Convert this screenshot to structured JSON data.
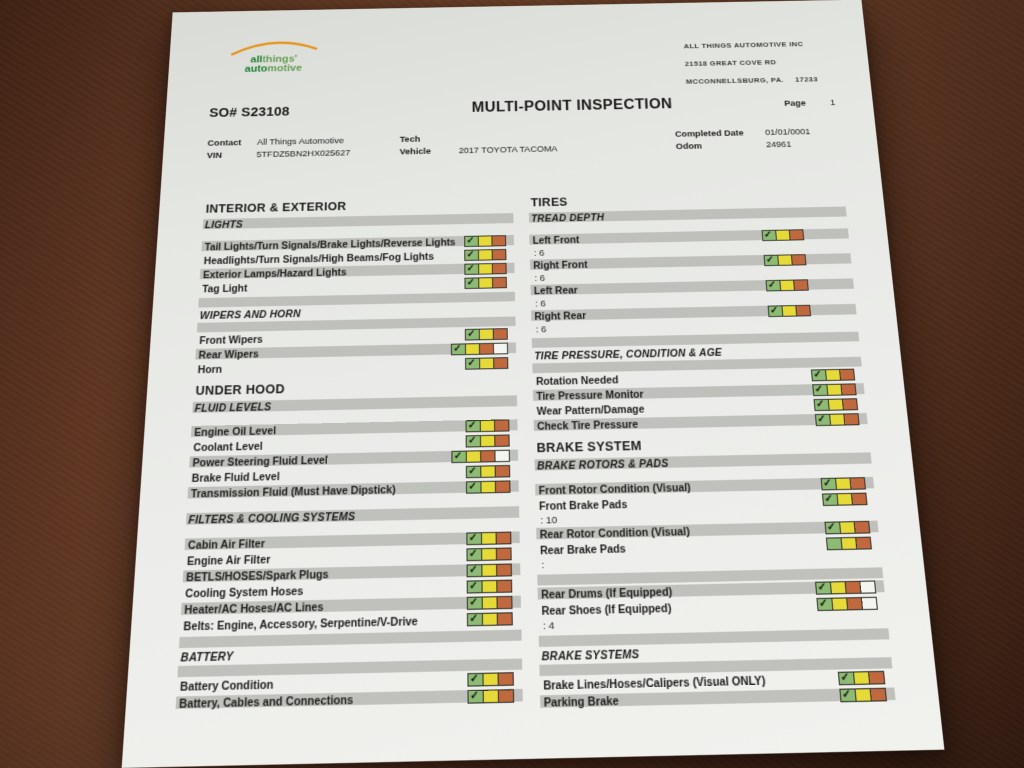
{
  "logo": {
    "line1_bold": "all",
    "line1_rest": "things'",
    "line2_bold": "auto",
    "line2_rest": "motive"
  },
  "company": {
    "name": "ALL THINGS AUTOMOTIVE INC",
    "address_line": "21518 GREAT COVE RD",
    "city_line": "MCCONNELLSBURG, PA.",
    "zip": "17233"
  },
  "header": {
    "so_number": "SO# S23108",
    "title": "MULTI-POINT INSPECTION",
    "page_label": "Page",
    "page_number": "1"
  },
  "info": {
    "contact_label": "Contact",
    "contact": "All Things Automotive",
    "vin_label": "VIN",
    "vin": "5TFDZ5BN2HX025627",
    "tech_label": "Tech",
    "tech": "",
    "vehicle_label": "Vehicle",
    "vehicle": "2017 TOYOTA TACOMA",
    "completed_label": "Completed Date",
    "completed_date": "01/01/0001",
    "odom_label": "Odom",
    "odom": "24961"
  },
  "colors": {
    "check_green": "#8dbb73",
    "check_yellow": "#e6da38",
    "check_orange": "#c0693e",
    "bar_gray": "#b7b8b4",
    "logo_dark_green": "#1e7c30",
    "logo_light_green": "#669e54",
    "logo_orange": "#e8921a"
  },
  "columns": {
    "left": [
      {
        "t": "h1",
        "label": "INTERIOR & EXTERIOR"
      },
      {
        "t": "h2",
        "label": "LIGHTS",
        "shaded": true
      },
      {
        "t": "gap"
      },
      {
        "t": "item",
        "label": "Tail Lights/Turn Signals/Brake Lights/Reverse Lights",
        "shaded": true,
        "check": true
      },
      {
        "t": "item",
        "label": "Headlights/Turn Signals/High Beams/Fog Lights",
        "shaded": false,
        "check": true
      },
      {
        "t": "item",
        "label": "Exterior Lamps/Hazard Lights",
        "shaded": true,
        "check": true
      },
      {
        "t": "item",
        "label": "Tag Light",
        "shaded": false,
        "check": true
      },
      {
        "t": "bar"
      },
      {
        "t": "h2",
        "label": "WIPERS AND HORN",
        "shaded": false
      },
      {
        "t": "bar"
      },
      {
        "t": "item",
        "label": "Front Wipers",
        "shaded": false,
        "check": true
      },
      {
        "t": "item",
        "label": "Rear Wipers",
        "shaded": true,
        "check": true,
        "white": true
      },
      {
        "t": "item",
        "label": "Horn",
        "shaded": false,
        "check": true
      },
      {
        "t": "h1",
        "label": "UNDER HOOD"
      },
      {
        "t": "h2",
        "label": "FLUID LEVELS",
        "shaded": true
      },
      {
        "t": "gap"
      },
      {
        "t": "item",
        "label": "Engine Oil Level",
        "shaded": true,
        "check": true
      },
      {
        "t": "item",
        "label": "Coolant Level",
        "shaded": false,
        "check": true
      },
      {
        "t": "item",
        "label": "Power Steering Fluid Level",
        "shaded": true,
        "check": true,
        "white": true
      },
      {
        "t": "item",
        "label": "Brake Fluid Level",
        "shaded": false,
        "check": true
      },
      {
        "t": "item",
        "label": "Transmission Fluid (Must Have Dipstick)",
        "shaded": true,
        "check": true
      },
      {
        "t": "gap"
      },
      {
        "t": "h2",
        "label": "FILTERS & COOLING SYSTEMS",
        "shaded": true
      },
      {
        "t": "gap"
      },
      {
        "t": "item",
        "label": "Cabin Air Filter",
        "shaded": true,
        "check": true
      },
      {
        "t": "item",
        "label": "Engine Air Filter",
        "shaded": false,
        "check": true
      },
      {
        "t": "item",
        "label": "BETLS/HOSES/Spark Plugs",
        "shaded": true,
        "check": true
      },
      {
        "t": "item",
        "label": "Cooling System Hoses",
        "shaded": false,
        "check": true
      },
      {
        "t": "item",
        "label": "Heater/AC Hoses/AC Lines",
        "shaded": true,
        "check": true
      },
      {
        "t": "item",
        "label": "Belts: Engine, Accessory, Serpentine/V-Drive",
        "shaded": false,
        "check": true
      },
      {
        "t": "bar"
      },
      {
        "t": "h2",
        "label": "BATTERY",
        "shaded": false
      },
      {
        "t": "bar"
      },
      {
        "t": "item",
        "label": "Battery Condition",
        "shaded": false,
        "check": true
      },
      {
        "t": "item",
        "label": "Battery, Cables and Connections",
        "shaded": true,
        "check": true
      }
    ],
    "right": [
      {
        "t": "h1",
        "label": "TIRES"
      },
      {
        "t": "h2",
        "label": "TREAD DEPTH",
        "shaded": true
      },
      {
        "t": "gap"
      },
      {
        "t": "item",
        "label": "Left Front",
        "shaded": true,
        "check": true,
        "inset": true
      },
      {
        "t": "value",
        "label": ": 6"
      },
      {
        "t": "item",
        "label": "Right Front",
        "shaded": true,
        "check": true,
        "inset": true
      },
      {
        "t": "value",
        "label": ": 6"
      },
      {
        "t": "item",
        "label": "Left Rear",
        "shaded": true,
        "check": true,
        "inset": true
      },
      {
        "t": "value",
        "label": ": 6"
      },
      {
        "t": "item",
        "label": "Right Rear",
        "shaded": true,
        "check": true,
        "inset": true
      },
      {
        "t": "value",
        "label": ": 6"
      },
      {
        "t": "bar"
      },
      {
        "t": "h2",
        "label": "TIRE PRESSURE, CONDITION & AGE",
        "shaded": false
      },
      {
        "t": "bar"
      },
      {
        "t": "item",
        "label": "Rotation Needed",
        "shaded": false,
        "check": true
      },
      {
        "t": "item",
        "label": "Tire Pressure Monitor",
        "shaded": true,
        "check": true
      },
      {
        "t": "item",
        "label": "Wear Pattern/Damage",
        "shaded": false,
        "check": true
      },
      {
        "t": "item",
        "label": "Check Tire Pressure",
        "shaded": true,
        "check": true
      },
      {
        "t": "h1",
        "label": "BRAKE SYSTEM"
      },
      {
        "t": "h2",
        "label": "BRAKE ROTORS & PADS",
        "shaded": true
      },
      {
        "t": "gap"
      },
      {
        "t": "item",
        "label": "Front Rotor Condition (Visual)",
        "shaded": true,
        "check": true
      },
      {
        "t": "item",
        "label": "Front Brake Pads",
        "shaded": false,
        "check": true
      },
      {
        "t": "value",
        "label": ": 10"
      },
      {
        "t": "item",
        "label": "Rear Rotor Condition (Visual)",
        "shaded": true,
        "check": true
      },
      {
        "t": "item",
        "label": "Rear Brake Pads",
        "shaded": false,
        "check": false
      },
      {
        "t": "value",
        "label": ":"
      },
      {
        "t": "bar"
      },
      {
        "t": "item",
        "label": "Rear Drums (If Equipped)",
        "shaded": true,
        "check": true,
        "white": true
      },
      {
        "t": "item",
        "label": "Rear Shoes (If Equipped)",
        "shaded": false,
        "check": true,
        "white": true
      },
      {
        "t": "value",
        "label": ": 4"
      },
      {
        "t": "bar"
      },
      {
        "t": "h2",
        "label": "BRAKE SYSTEMS",
        "shaded": false
      },
      {
        "t": "bar"
      },
      {
        "t": "item",
        "label": "Brake Lines/Hoses/Calipers (Visual ONLY)",
        "shaded": false,
        "check": true
      },
      {
        "t": "item",
        "label": "Parking Brake",
        "shaded": true,
        "check": true
      }
    ]
  }
}
